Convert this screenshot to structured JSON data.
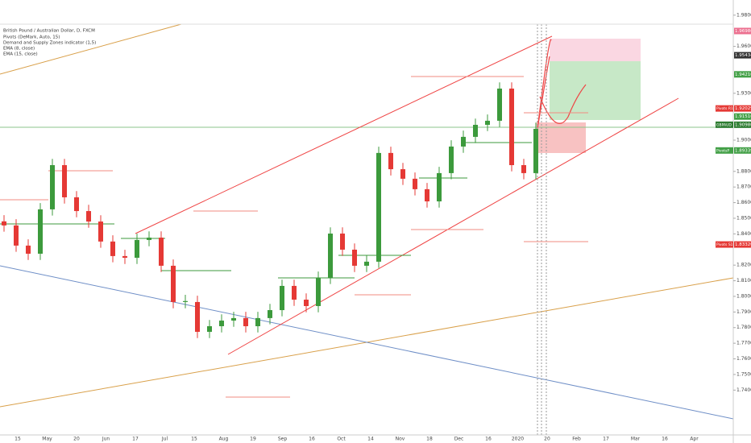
{
  "chart_data": {
    "type": "candlestick",
    "title": "British Pound / Australian Dollar, D, FXCM",
    "indicators": [
      "Pivots (DeMark, Auto, 15)",
      "Demand and Supply Zones indicator (1,5)",
      "EMA (8, close)",
      "EMA (15, close)"
    ],
    "up_color": "#3c9a3c",
    "down_color": "#e53935",
    "open": [
      1.848,
      1.8454,
      1.8325,
      1.8273,
      1.8557,
      1.884,
      1.8634,
      1.8546,
      1.8479,
      1.8351,
      1.8258,
      1.8247,
      1.8361,
      1.8376,
      1.8196,
      1.7964,
      1.7964,
      1.7773,
      1.7809,
      1.7845,
      1.7861,
      1.7809,
      1.7861,
      1.7912,
      1.8067,
      1.7979,
      1.7938,
      1.8119,
      1.8402,
      1.8299,
      1.8196,
      1.8222,
      1.8918,
      1.8814,
      1.8753,
      1.8686,
      1.8608,
      1.8789,
      1.8959,
      1.9021,
      1.9098,
      1.9124,
      1.933,
      1.884,
      1.8789
    ],
    "close": [
      1.8454,
      1.8325,
      1.8273,
      1.8557,
      1.884,
      1.8634,
      1.8546,
      1.8479,
      1.8351,
      1.8258,
      1.8247,
      1.8361,
      1.8376,
      1.8196,
      1.7964,
      1.797,
      1.7773,
      1.7809,
      1.7845,
      1.7861,
      1.7809,
      1.7861,
      1.7912,
      1.8067,
      1.7979,
      1.7938,
      1.8119,
      1.8402,
      1.8299,
      1.8196,
      1.8222,
      1.8918,
      1.8814,
      1.8753,
      1.8686,
      1.8608,
      1.8789,
      1.8959,
      1.9021,
      1.9098,
      1.9124,
      1.933,
      1.884,
      1.8789,
      1.9072
    ],
    "high": [
      1.852,
      1.8494,
      1.8365,
      1.8597,
      1.888,
      1.888,
      1.8674,
      1.8586,
      1.8519,
      1.8391,
      1.8298,
      1.8401,
      1.8416,
      1.8416,
      1.8236,
      1.801,
      1.8004,
      1.7849,
      1.7885,
      1.7901,
      1.7901,
      1.7901,
      1.7952,
      1.8107,
      1.8107,
      1.8019,
      1.8159,
      1.8442,
      1.8442,
      1.8339,
      1.8262,
      1.8958,
      1.8958,
      1.8854,
      1.8793,
      1.8726,
      1.8829,
      1.8999,
      1.9061,
      1.9138,
      1.9164,
      1.937,
      1.937,
      1.888,
      1.9112
    ],
    "low": [
      1.8414,
      1.8285,
      1.8233,
      1.8233,
      1.8517,
      1.8594,
      1.8506,
      1.8439,
      1.8311,
      1.8218,
      1.8207,
      1.8207,
      1.8321,
      1.8156,
      1.7924,
      1.7924,
      1.7733,
      1.7733,
      1.7769,
      1.7805,
      1.7769,
      1.7769,
      1.7821,
      1.7872,
      1.7939,
      1.7898,
      1.7898,
      1.8079,
      1.8259,
      1.8156,
      1.8156,
      1.8182,
      1.8774,
      1.8713,
      1.8646,
      1.8568,
      1.8568,
      1.8749,
      1.8919,
      1.8981,
      1.9058,
      1.9084,
      1.88,
      1.8749,
      1.8749
    ],
    "ylim": [
      1.7113,
      1.9897
    ],
    "yticks": [
      {
        "value": 1.74,
        "label": "1.74000"
      },
      {
        "value": 1.75,
        "label": "1.75000"
      },
      {
        "value": 1.76,
        "label": "1.76000"
      },
      {
        "value": 1.77,
        "label": "1.77000"
      },
      {
        "value": 1.78,
        "label": "1.78000"
      },
      {
        "value": 1.79,
        "label": "1.79000"
      },
      {
        "value": 1.8,
        "label": "1.80000"
      },
      {
        "value": 1.81,
        "label": "1.81000"
      },
      {
        "value": 1.82,
        "label": "1.82000"
      },
      {
        "value": 1.84,
        "label": "1.84000"
      },
      {
        "value": 1.85,
        "label": "1.85000"
      },
      {
        "value": 1.86,
        "label": "1.86000"
      },
      {
        "value": 1.87,
        "label": "1.87000"
      },
      {
        "value": 1.88,
        "label": "1.88000"
      },
      {
        "value": 1.9,
        "label": "1.90000"
      },
      {
        "value": 1.93,
        "label": "1.93000"
      },
      {
        "value": 1.96,
        "label": "1.96000"
      },
      {
        "value": 1.98,
        "label": "1.98000"
      }
    ],
    "x_labels": [
      "15",
      "May",
      "20",
      "Jun",
      "17",
      "Jul",
      "15",
      "Aug",
      "19",
      "Sep",
      "16",
      "Oct",
      "14",
      "Nov",
      "18",
      "Dec",
      "16",
      "2020",
      "20",
      "Feb",
      "17",
      "Mar",
      "16",
      "Apr"
    ],
    "price_tags": [
      {
        "value": 1.96986,
        "label": "1.96986",
        "color": "#ec6f8f"
      },
      {
        "value": 1.95434,
        "label": "1.95434",
        "color": "#333333"
      },
      {
        "value": 1.9421,
        "label": "1.94210",
        "color": "#43a047"
      },
      {
        "name": "Pivots R1",
        "value": 1.92029,
        "label": "1.92029",
        "color": "#e53935"
      },
      {
        "value": 1.9151,
        "label": "1.91510",
        "color": "#43a047"
      },
      {
        "name": "GBPAUD",
        "value": 1.90986,
        "label": "1.90986",
        "color": "#2e7d32"
      },
      {
        "name": "PivotsP",
        "value": 1.89339,
        "label": "1.89339",
        "color": "#43a047"
      },
      {
        "name": "Pivots S1",
        "value": 1.8332,
        "label": "1.83320",
        "color": "#e53935"
      }
    ]
  }
}
